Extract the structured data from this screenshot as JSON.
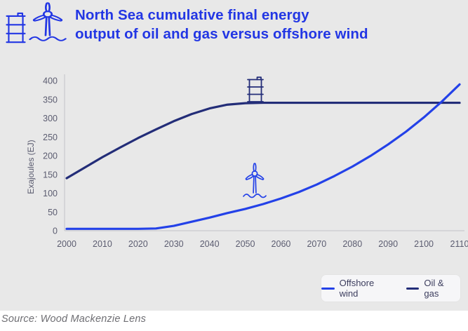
{
  "header": {
    "title_line1": "North Sea cumulative final energy",
    "title_line2": "output of oil and gas versus offshore wind",
    "icons": [
      "oil-barrel-icon",
      "offshore-turbine-icon"
    ]
  },
  "chart_data": {
    "type": "line",
    "title": "North Sea cumulative final energy output of oil and gas versus offshore wind",
    "xlabel": "",
    "ylabel": "Exajoules (EJ)",
    "ylim": [
      0,
      400
    ],
    "y_ticks": [
      0,
      50,
      100,
      150,
      200,
      250,
      300,
      350,
      400
    ],
    "x_ticks": [
      2000,
      2010,
      2020,
      2030,
      2040,
      2050,
      2060,
      2070,
      2080,
      2090,
      2100,
      2110
    ],
    "grid": false,
    "legend_position": "bottom-right",
    "x": [
      2000,
      2005,
      2010,
      2015,
      2020,
      2025,
      2030,
      2035,
      2040,
      2045,
      2050,
      2055,
      2060,
      2065,
      2070,
      2075,
      2080,
      2085,
      2090,
      2095,
      2100,
      2105,
      2110
    ],
    "series": [
      {
        "name": "Offshore wind",
        "color": "#2341e8",
        "values": [
          5,
          5,
          5,
          5,
          5,
          6,
          13,
          24,
          35,
          47,
          58,
          71,
          86,
          103,
          123,
          146,
          171,
          199,
          230,
          264,
          302,
          344,
          390
        ]
      },
      {
        "name": "Oil & gas",
        "color": "#232d78",
        "values": [
          140,
          168,
          196,
          222,
          247,
          270,
          292,
          311,
          326,
          336,
          340,
          341,
          341,
          341,
          341,
          341,
          341,
          341,
          341,
          341,
          341,
          341,
          341
        ]
      }
    ],
    "annotations": [
      {
        "icon": "oil-barrel-icon",
        "near": "Oil & gas plateau at ~341 EJ, year ~2052"
      },
      {
        "icon": "offshore-turbine-icon",
        "near": "Offshore wind curve, year ~2053"
      }
    ]
  },
  "legend": {
    "items": [
      {
        "label": "Offshore wind",
        "color": "#2341e8"
      },
      {
        "label": "Oil & gas",
        "color": "#232d78"
      }
    ]
  },
  "footer": {
    "source": "Source: Wood Mackenzie Lens"
  },
  "colors": {
    "background": "#e8e8e8",
    "panel-white": "#ffffff",
    "title-blue": "#2236e4",
    "wind-blue": "#2341e8",
    "oil-navy": "#232d78",
    "tick-gray": "#5b5c70",
    "axis-gray": "#c9c9ce",
    "legend-bg": "#f6f6f8",
    "legend-text": "#3c3d5e",
    "source-gray": "#6e6e73"
  }
}
